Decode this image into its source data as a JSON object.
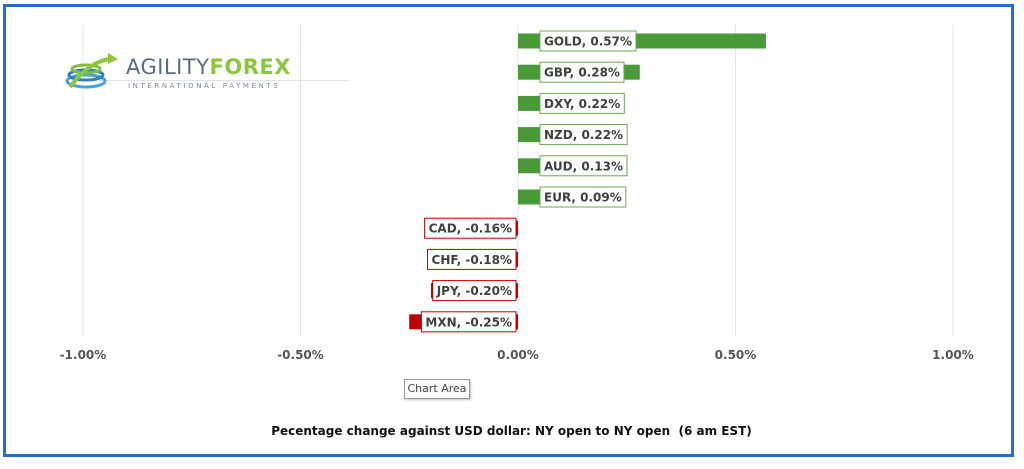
{
  "brand": {
    "name_part1": "AGILITY",
    "name_part2": "FOREX",
    "tagline": "INTERNATIONAL PAYMENTS",
    "logo_icon": "globe-swoosh-icon"
  },
  "tooltip": {
    "label": "Chart Area"
  },
  "chart_data": {
    "type": "bar",
    "orientation": "horizontal",
    "title": "",
    "xlabel": "Pecentage change against USD dollar: NY open to NY open  (6 am EST)",
    "ylabel": "",
    "xlim": [
      -1.0,
      1.0
    ],
    "x_ticks": [
      {
        "value": -1.0,
        "label": "-1.00%"
      },
      {
        "value": -0.5,
        "label": "-0.50%"
      },
      {
        "value": 0.0,
        "label": "0.00%"
      },
      {
        "value": 0.5,
        "label": "0.50%"
      },
      {
        "value": 1.0,
        "label": "1.00%"
      }
    ],
    "grid": "vertical",
    "colors": {
      "positive": "#4a9a3a",
      "negative": "#c00000",
      "label_border_positive": "#6aa84f",
      "label_border_negative": "#c00000",
      "grid": "#e6e6e6"
    },
    "categories": [
      "GOLD",
      "GBP",
      "DXY",
      "NZD",
      "AUD",
      "EUR",
      "CAD",
      "CHF",
      "JPY",
      "MXN"
    ],
    "values": [
      0.57,
      0.28,
      0.22,
      0.22,
      0.13,
      0.09,
      -0.16,
      -0.18,
      -0.2,
      -0.25
    ],
    "data_labels": [
      "GOLD, 0.57%",
      "GBP, 0.28%",
      "DXY, 0.22%",
      "NZD, 0.22%",
      "AUD, 0.13%",
      "EUR, 0.09%",
      "CAD, -0.16%",
      "CHF, -0.18%",
      "JPY, -0.20%",
      "MXN, -0.25%"
    ]
  }
}
